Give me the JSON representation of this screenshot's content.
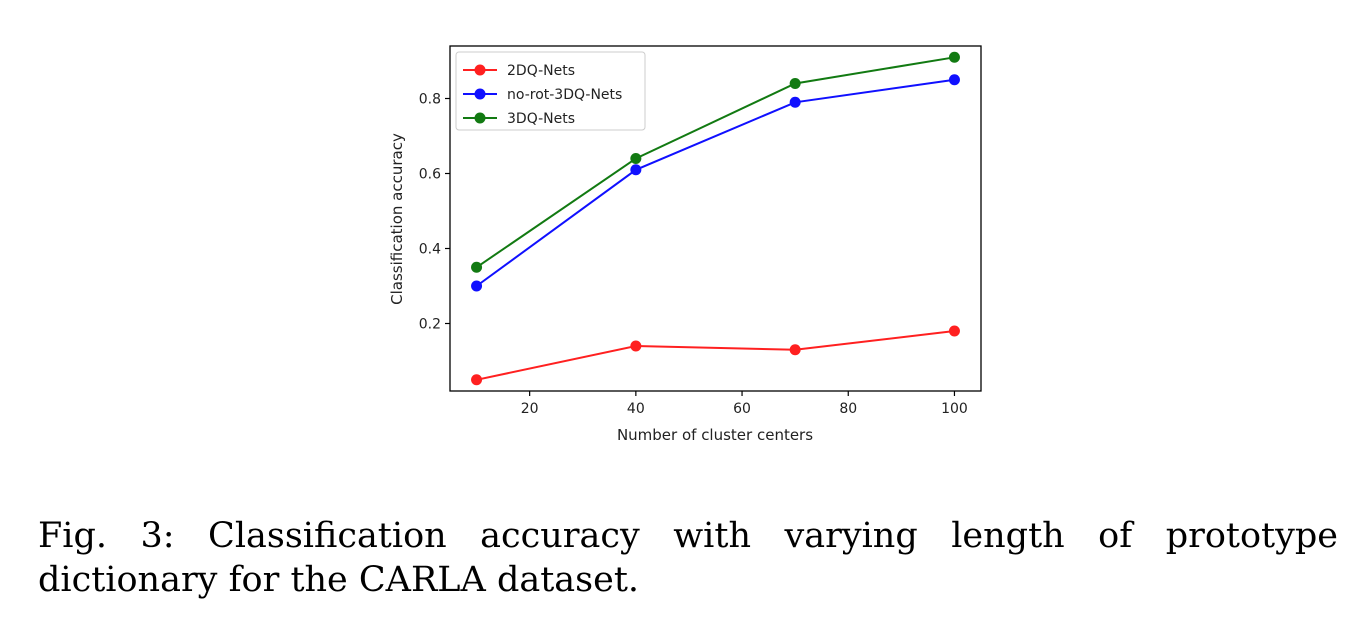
{
  "caption": "Fig. 3: Classification accuracy with varying length of prototype dictionary for the CARLA dataset.",
  "chart_data": {
    "type": "line",
    "title": "",
    "xlabel": "Number of cluster centers",
    "ylabel": "Classification accuracy",
    "x": [
      10,
      40,
      70,
      100
    ],
    "xlim": [
      5,
      105
    ],
    "ylim": [
      0.02,
      0.94
    ],
    "xticks": [
      20,
      40,
      60,
      80,
      100
    ],
    "yticks": [
      0.2,
      0.4,
      0.6,
      0.8
    ],
    "xtick_labels": [
      "20",
      "40",
      "60",
      "80",
      "100"
    ],
    "ytick_labels": [
      "0.2",
      "0.4",
      "0.6",
      "0.8"
    ],
    "grid": false,
    "legend_position": "top-left",
    "series": [
      {
        "name": "2DQ-Nets",
        "color": "#ff2020",
        "values": [
          0.05,
          0.14,
          0.13,
          0.18
        ]
      },
      {
        "name": "no-rot-3DQ-Nets",
        "color": "#1010ff",
        "values": [
          0.3,
          0.61,
          0.79,
          0.85
        ]
      },
      {
        "name": "3DQ-Nets",
        "color": "#127a12",
        "values": [
          0.35,
          0.64,
          0.84,
          0.91
        ]
      }
    ]
  }
}
